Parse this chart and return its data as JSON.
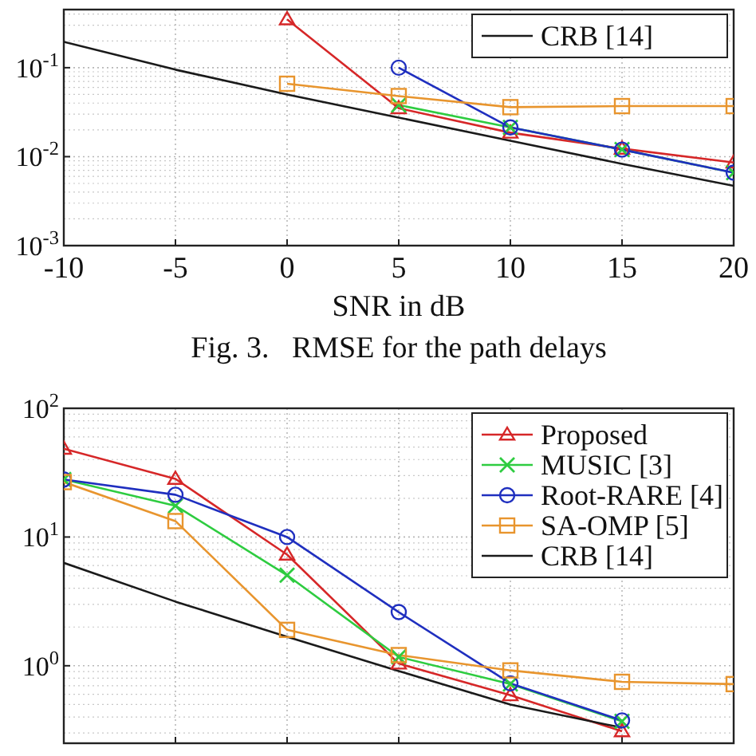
{
  "chart_data": [
    {
      "type": "line",
      "xlabel": "SNR in dB",
      "annotations": [
        "Fig. 3.   RMSE for the path delays"
      ],
      "x": [
        -10,
        -5,
        0,
        5,
        10,
        15,
        20
      ],
      "log": "y",
      "grid": true,
      "legend": "top right",
      "xlim": [
        -10,
        20
      ],
      "xticks": [
        -10,
        -5,
        0,
        5,
        10,
        15,
        20
      ],
      "ylim": [
        0.001,
        0.45
      ],
      "yticks": [
        {
          "value": 0.1,
          "label": "10$^{-1}$"
        },
        {
          "value": 0.01,
          "label": "10$^{-2}$"
        },
        {
          "value": 0.001,
          "label": "10$^{-3}$"
        }
      ],
      "series": [
        {
          "color": "#d62728",
          "marker": "triangle",
          "values": [
            null,
            null,
            0.35,
            0.035,
            0.0186,
            0.0123,
            0.0086
          ]
        },
        {
          "color": "#2ecc40",
          "marker": "cross",
          "values": [
            null,
            null,
            null,
            0.038,
            0.0213,
            0.012,
            0.0066
          ]
        },
        {
          "color": "#1f2fbf",
          "marker": "circle",
          "values": [
            null,
            null,
            null,
            0.1,
            0.0213,
            0.012,
            0.0066
          ]
        },
        {
          "color": "#e8952e",
          "marker": "square",
          "values": [
            null,
            null,
            0.066,
            0.048,
            0.036,
            0.037,
            0.037
          ]
        },
        {
          "name": "CRB [14]",
          "color": "#1a1a1a",
          "marker": "none",
          "values": [
            0.195,
            0.095,
            0.05,
            0.0275,
            0.0151,
            0.0083,
            0.0047
          ]
        }
      ]
    },
    {
      "type": "line",
      "x": [
        -10,
        -5,
        0,
        5,
        10,
        15,
        20
      ],
      "log": "y",
      "grid": true,
      "legend": "top right",
      "tick_labels": "y",
      "xlim": [
        -10,
        20
      ],
      "xticks": [
        -10,
        -5,
        0,
        5,
        10,
        15,
        20
      ],
      "ylim": [
        0.25,
        100
      ],
      "yticks": [
        {
          "value": 1,
          "label": "10$^{0}$"
        },
        {
          "value": 10,
          "label": "10$^{1}$"
        },
        {
          "value": 100,
          "label": "10$^{2}$"
        }
      ],
      "series": [
        {
          "name": "Proposed",
          "color": "#d62728",
          "marker": "triangle",
          "values": [
            48.5,
            28.3,
            7.3,
            1.04,
            0.59,
            0.31,
            null
          ]
        },
        {
          "name": "MUSIC [3]",
          "color": "#2ecc40",
          "marker": "cross",
          "values": [
            28,
            17.5,
            5.05,
            1.17,
            0.72,
            0.37,
            null
          ]
        },
        {
          "name": "Root-RARE [4]",
          "color": "#1f2fbf",
          "marker": "circle",
          "values": [
            28,
            21.3,
            10,
            2.61,
            0.73,
            0.376,
            null
          ]
        },
        {
          "name": "SA-OMP [5]",
          "color": "#e8952e",
          "marker": "square",
          "values": [
            26.7,
            13.3,
            1.9,
            1.21,
            0.92,
            0.75,
            0.72
          ]
        },
        {
          "name": "CRB [14]",
          "color": "#1a1a1a",
          "marker": "none",
          "values": [
            6.3,
            3.15,
            1.68,
            0.91,
            0.5,
            0.33,
            null
          ]
        }
      ]
    }
  ]
}
